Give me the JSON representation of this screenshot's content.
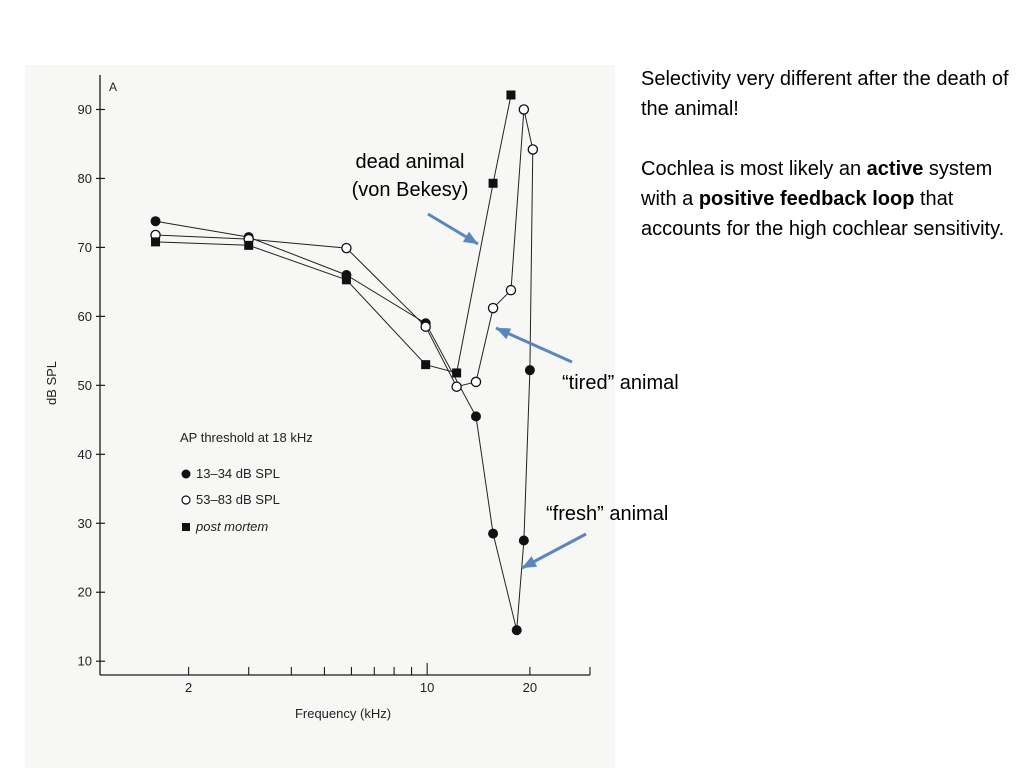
{
  "chart_data": {
    "type": "line",
    "panel_label": "A",
    "xlabel": "Frequency (kHz)",
    "ylabel": "dB SPL",
    "x_scale": "log",
    "xlim": [
      1.1,
      30
    ],
    "ylim": [
      8,
      95
    ],
    "x_tick_labels": [
      {
        "value": 2,
        "label": "2"
      },
      {
        "value": 10,
        "label": "10"
      },
      {
        "value": 20,
        "label": "20"
      }
    ],
    "y_ticks": [
      10,
      20,
      30,
      40,
      50,
      60,
      70,
      80,
      90
    ],
    "grid": false,
    "legend_title": "AP threshold at 18 kHz",
    "series": [
      {
        "name": "13–34 dB SPL",
        "marker": "filled-circle",
        "x": [
          1.6,
          3.0,
          5.8,
          9.9,
          13.9,
          15.6,
          18.3,
          19.2,
          20.0,
          20.4
        ],
        "y": [
          73.8,
          71.5,
          66.0,
          59.0,
          45.5,
          28.5,
          14.5,
          27.5,
          52.2,
          84.2
        ]
      },
      {
        "name": "53–83 dB SPL",
        "marker": "open-circle",
        "x": [
          1.6,
          3.0,
          5.8,
          9.9,
          12.2,
          13.9,
          15.6,
          17.6,
          19.2,
          20.4
        ],
        "y": [
          71.8,
          71.2,
          69.9,
          58.5,
          49.8,
          50.5,
          61.2,
          63.8,
          90.0,
          84.2
        ]
      },
      {
        "name": "post mortem",
        "marker": "filled-square",
        "x": [
          1.6,
          3.0,
          5.8,
          9.9,
          12.2,
          15.6,
          17.6
        ],
        "y": [
          70.8,
          70.3,
          65.3,
          53.0,
          51.8,
          79.3,
          92.1
        ]
      }
    ]
  },
  "right_text": {
    "line1": "Selectivity very different after the death of the animal!",
    "p2_a": "Cochlea is most likely an ",
    "p2_active": "active",
    "p2_b": " system with a ",
    "p2_positive": "positive feedback loop",
    "p2_c": " that accounts for the high cochlear sensitivity."
  },
  "annotations": {
    "dead_line1": "dead animal",
    "dead_line2": "(von Bekesy)",
    "tired": "“tired” animal",
    "fresh": "“fresh” animal"
  },
  "colors": {
    "arrow": "#5a86bd",
    "axis": "#1a1a1a",
    "panel": "#f7f7f6"
  }
}
